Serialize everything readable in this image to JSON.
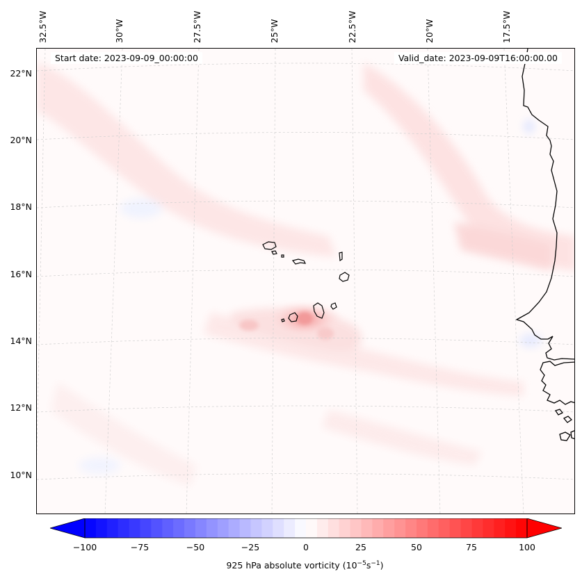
{
  "header": {
    "start_date": "Start date: 2023-09-09_00:00:00",
    "valid_date": "Valid_date: 2023-09-09T16:00:00.00"
  },
  "axes": {
    "longitude_labels": [
      "32.5°W",
      "30°W",
      "27.5°W",
      "25°W",
      "22.5°W",
      "20°W",
      "17.5°W"
    ],
    "latitude_labels": [
      "22°N",
      "20°N",
      "18°N",
      "16°N",
      "14°N",
      "12°N",
      "10°N"
    ]
  },
  "colorbar": {
    "label_prefix": "925 hPa absolute vorticity (10",
    "label_exp1": "−5",
    "label_mid": "s",
    "label_exp2": "−1",
    "label_suffix": ")",
    "ticks": [
      "−100",
      "−75",
      "−50",
      "−25",
      "0",
      "25",
      "50",
      "75",
      "100"
    ],
    "min": -100,
    "max": 100,
    "color_low": "#0000ff",
    "color_mid": "#ffffff",
    "color_high": "#ff0000"
  },
  "map": {
    "background_color": "#fffafa",
    "coastline_color": "#000000",
    "gridline_color": "#cccccc"
  }
}
